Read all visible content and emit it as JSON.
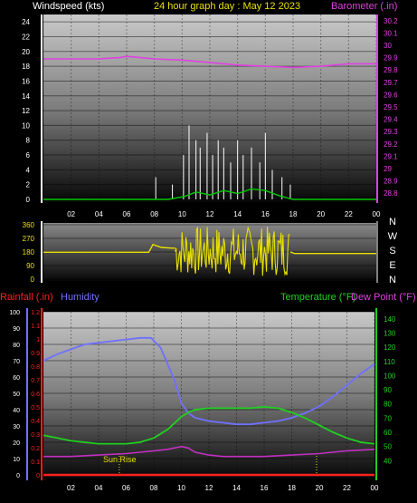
{
  "title": "24 hour graph day : May 12 2023",
  "colors": {
    "wind": "#ffffff",
    "gust": "#00c800",
    "baro": "#e040e0",
    "dir": "#e8e000",
    "hum": "#7070ff",
    "temp": "#20d020",
    "dew": "#c030c0",
    "rain": "#ff2020",
    "white": "#ffffff"
  },
  "chart_data": [
    {
      "type": "line",
      "name": "wind-baro",
      "left_label": "Windspeed (kts)",
      "right_label": "Barometer (.in)",
      "x_ticks": [
        "02",
        "04",
        "06",
        "08",
        "10",
        "12",
        "14",
        "16",
        "18",
        "20",
        "22",
        "00"
      ],
      "y_left_ticks": [
        "24",
        "22",
        "20",
        "18",
        "16",
        "14",
        "12",
        "10",
        "8",
        "6",
        "4",
        "2",
        "0"
      ],
      "y_left_range": [
        0,
        25
      ],
      "y_right_ticks": [
        "30.2",
        "30.1",
        "30",
        "29.9",
        "29.8",
        "29.7",
        "29.6",
        "29.5",
        "29.4",
        "29.3",
        "29.2",
        "29.1",
        "29",
        "28.9",
        "28.8"
      ],
      "y_right_range": [
        28.75,
        30.25
      ],
      "barometer": {
        "x": [
          0,
          2,
          4,
          5.5,
          6,
          7,
          8,
          10,
          12,
          14,
          16,
          18,
          20,
          22,
          24
        ],
        "y": [
          29.89,
          29.89,
          29.89,
          29.9,
          29.91,
          29.9,
          29.89,
          29.88,
          29.86,
          29.84,
          29.83,
          29.82,
          29.83,
          29.85,
          29.85
        ]
      },
      "windspeed_peaks": {
        "x": [
          8.1,
          9.3,
          10.1,
          10.5,
          11,
          11.3,
          11.8,
          12.2,
          12.6,
          13,
          13.5,
          14,
          14.4,
          15,
          15.6,
          16,
          16.5,
          17.2,
          17.8
        ],
        "y": [
          3,
          2,
          6,
          10,
          8,
          7,
          9,
          6,
          8,
          7,
          5,
          8,
          6,
          7,
          5,
          9,
          4,
          3,
          2
        ]
      },
      "gust": {
        "x": [
          0,
          9,
          10.2,
          11,
          12,
          13,
          14,
          15,
          16,
          17,
          18,
          24
        ],
        "y": [
          0,
          0,
          0.4,
          1,
          0.6,
          1.2,
          0.8,
          1.4,
          1.2,
          0.5,
          0,
          0
        ]
      }
    },
    {
      "type": "line",
      "name": "direction",
      "y_ticks": [
        "360",
        "270",
        "180",
        "90",
        "0"
      ],
      "y_range": [
        0,
        360
      ],
      "compass_labels": [
        "N",
        "W",
        "S",
        "E",
        "N"
      ],
      "direction": {
        "x": [
          0,
          7.6,
          7.9,
          8.5,
          9.3,
          9.5
        ],
        "y": [
          178,
          178,
          230,
          210,
          205,
          205
        ]
      },
      "direction_end": {
        "x": [
          17.8,
          18.1,
          24
        ],
        "y": [
          180,
          170,
          170
        ]
      }
    },
    {
      "type": "line",
      "name": "rain-hum-temp",
      "left_label_1": "Rainfall (.in)",
      "left_label_2": "Humidity",
      "right_label_1": "Temperature (°F)",
      "right_label_2": "Dew Point (°F)",
      "annotation": "Sun Rise",
      "rain_ticks": [
        "1.2",
        "1.1",
        "1",
        "0.9",
        "0.8",
        "0.7",
        "0.6",
        "0.5",
        "0.4",
        "0.3",
        "0.2",
        "0.1",
        "0"
      ],
      "hum_ticks": [
        "100",
        "90",
        "80",
        "70",
        "60",
        "50",
        "40",
        "30",
        "20",
        "10",
        "0"
      ],
      "temp_ticks": [
        "140",
        "130",
        "120",
        "110",
        "100",
        "90",
        "80",
        "70",
        "60",
        "50",
        "40"
      ],
      "temp_range": [
        30,
        145
      ],
      "x_ticks": [
        "02",
        "04",
        "06",
        "08",
        "10",
        "12",
        "14",
        "16",
        "18",
        "20",
        "22",
        "00"
      ],
      "humidity": {
        "x": [
          0,
          1,
          2,
          3,
          4,
          5,
          6,
          7,
          7.8,
          8.5,
          9,
          9.5,
          10,
          10.5,
          11,
          12,
          13,
          14,
          15,
          16,
          17,
          18,
          19,
          20,
          21,
          22,
          23,
          24
        ],
        "y": [
          70,
          74,
          77,
          80,
          81,
          82,
          83,
          84,
          84,
          78,
          68,
          58,
          44,
          38,
          35,
          33,
          32,
          31,
          31,
          32,
          33,
          35,
          38,
          42,
          48,
          55,
          62,
          68
        ]
      },
      "temperature": {
        "x": [
          0,
          1,
          2,
          3,
          4,
          5,
          6,
          7,
          8,
          9,
          10,
          10.5,
          11,
          12,
          13,
          14,
          15,
          16,
          17,
          18,
          19,
          20,
          21,
          22,
          23,
          24
        ],
        "y": [
          58,
          56,
          54,
          53,
          52,
          52,
          52,
          53,
          56,
          62,
          71,
          74,
          76,
          77,
          77,
          77,
          77,
          78,
          77,
          74,
          70,
          65,
          60,
          56,
          53,
          52
        ]
      },
      "dewpoint": {
        "x": [
          0,
          2,
          4,
          6,
          7,
          8,
          9,
          10,
          10.5,
          11,
          12,
          13,
          14,
          16,
          18,
          20,
          22,
          24
        ],
        "y": [
          43,
          43,
          44,
          45,
          46,
          47,
          48,
          50,
          49,
          46,
          44,
          43,
          43,
          43,
          44,
          45,
          47,
          48
        ]
      },
      "rainfall": {
        "x": [
          0,
          24
        ],
        "y": [
          0,
          0
        ]
      }
    }
  ]
}
